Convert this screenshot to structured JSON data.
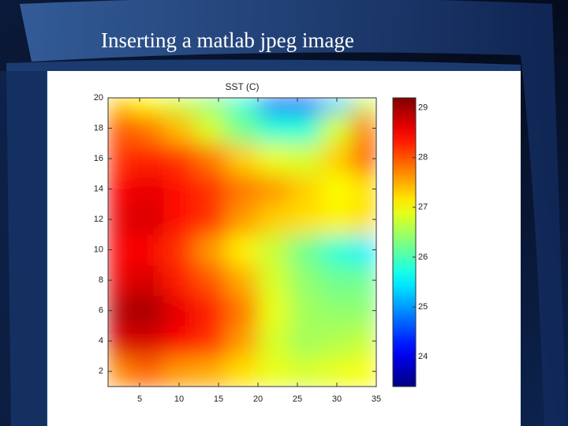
{
  "slide_title": "Inserting a matlab jpeg image",
  "chart_data": {
    "type": "heatmap",
    "title": "SST (C)",
    "colormap": "jet",
    "x": [
      2,
      6,
      10,
      14,
      18,
      22,
      26,
      30,
      34
    ],
    "y": [
      2,
      4,
      6,
      8,
      10,
      12,
      14,
      16,
      18,
      20
    ],
    "values": [
      [
        27.7,
        27.9,
        27.6,
        27.5,
        27.2,
        26.9,
        26.8,
        26.9,
        27.0
      ],
      [
        28.7,
        28.7,
        28.5,
        28.2,
        27.6,
        26.8,
        26.5,
        26.6,
        26.7
      ],
      [
        28.9,
        29.0,
        28.6,
        28.3,
        27.8,
        26.9,
        26.5,
        26.4,
        26.4
      ],
      [
        28.6,
        28.7,
        28.3,
        28.0,
        27.5,
        26.8,
        26.4,
        26.2,
        26.2
      ],
      [
        28.5,
        28.5,
        28.2,
        27.6,
        27.1,
        26.7,
        26.2,
        25.8,
        25.5
      ],
      [
        28.6,
        28.7,
        28.4,
        28.2,
        27.6,
        27.3,
        27.2,
        27.1,
        27.2
      ],
      [
        28.5,
        28.6,
        28.4,
        28.2,
        27.8,
        27.6,
        27.3,
        27.0,
        27.2
      ],
      [
        28.2,
        28.3,
        28.2,
        27.8,
        27.3,
        26.9,
        26.8,
        27.3,
        28.0
      ],
      [
        28.0,
        27.8,
        27.4,
        26.8,
        26.2,
        25.8,
        25.8,
        26.8,
        27.8
      ],
      [
        27.3,
        27.0,
        26.7,
        26.3,
        25.8,
        24.5,
        24.3,
        25.3,
        26.7
      ]
    ],
    "xlim": [
      1,
      35
    ],
    "ylim": [
      1,
      20
    ],
    "xticks": [
      5,
      10,
      15,
      20,
      25,
      30,
      35
    ],
    "yticks": [
      2,
      4,
      6,
      8,
      10,
      12,
      14,
      16,
      18,
      20
    ],
    "clim": [
      23.4,
      29.2
    ],
    "cticks": [
      24,
      25,
      26,
      27,
      28,
      29
    ]
  }
}
